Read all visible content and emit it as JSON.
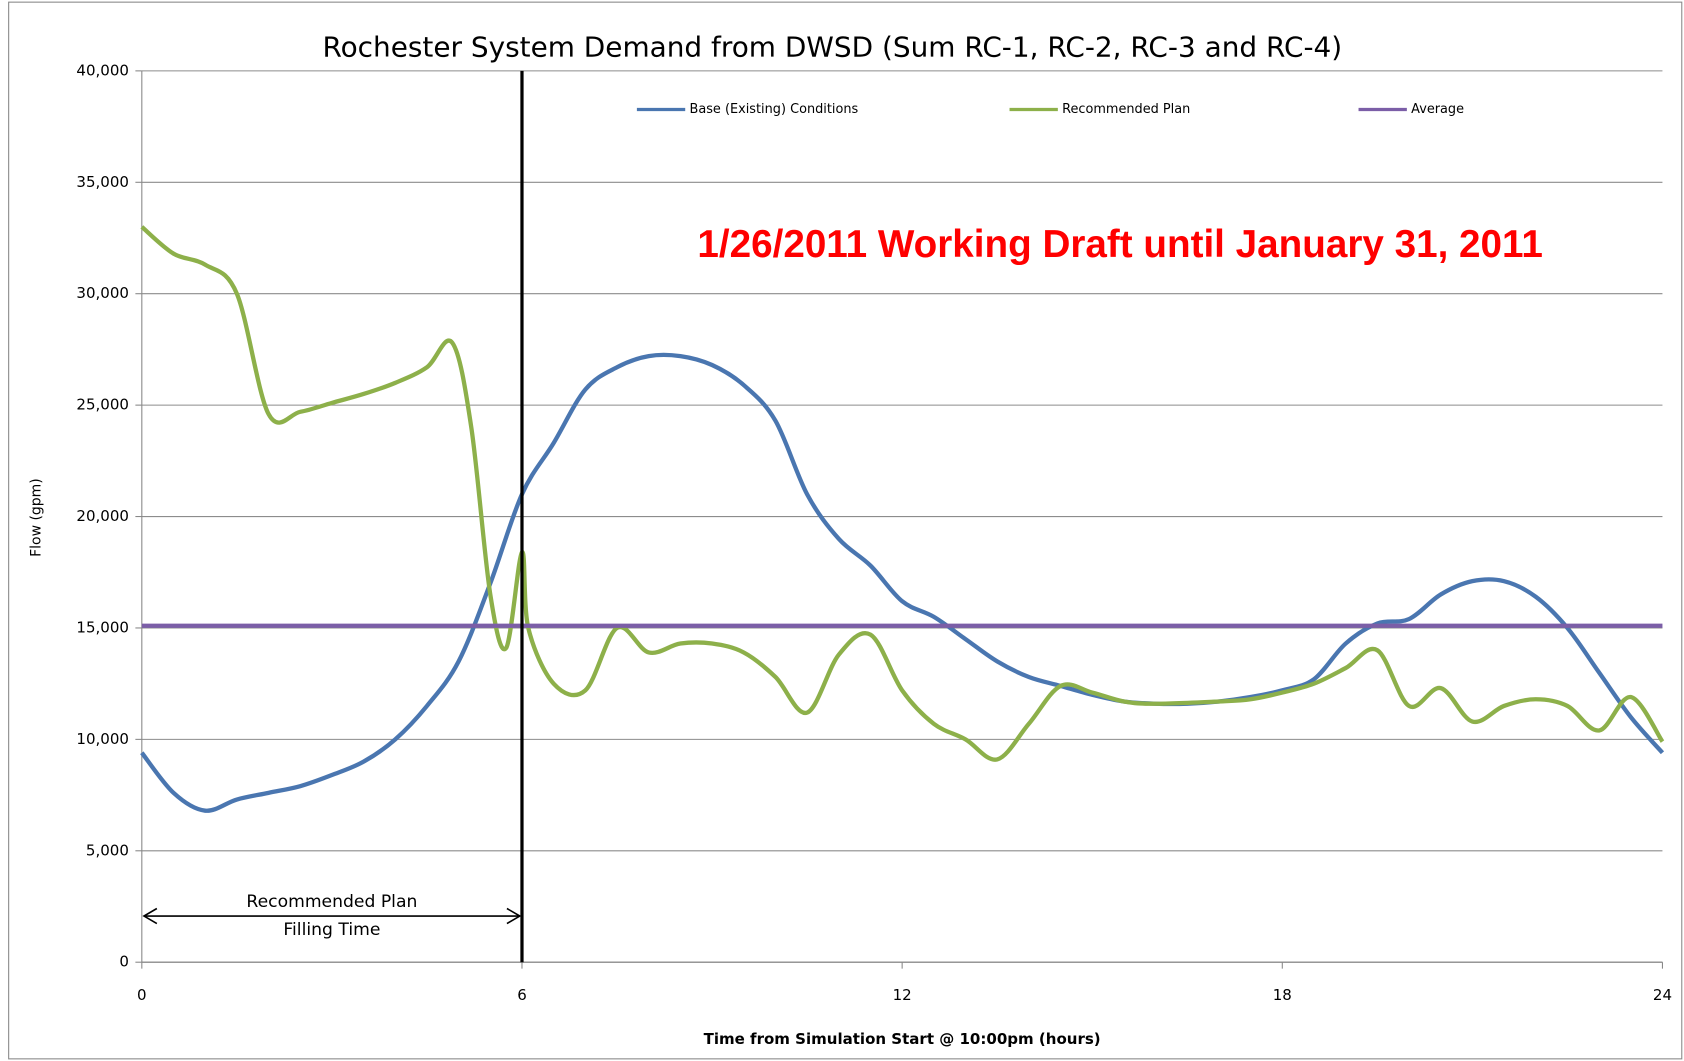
{
  "chart_data": {
    "type": "line",
    "title": "Rochester System Demand from DWSD (Sum RC-1, RC-2, RC-3 and RC-4)",
    "x_label": "Time from Simulation Start @ 10:00pm (hours)",
    "y_label": "Flow (gpm)",
    "xlim": [
      0,
      24
    ],
    "xticks": [
      0,
      6,
      12,
      18,
      24
    ],
    "ylim": [
      0,
      40000
    ],
    "yticks": [
      0,
      {
        "value": 5000,
        "label": "5,000"
      },
      {
        "value": 10000,
        "label": "10,000"
      },
      {
        "value": 15000,
        "label": "15,000"
      },
      {
        "value": 20000,
        "label": "20,000"
      },
      {
        "value": 25000,
        "label": "25,000"
      },
      {
        "value": 30000,
        "label": "30,000"
      },
      {
        "value": 35000,
        "label": "35,000"
      },
      {
        "value": 40000,
        "label": "40,000"
      }
    ],
    "grid": true,
    "legend": "top",
    "series": [
      {
        "name": "Base (Existing) Conditions",
        "color": "#4a76b0",
        "x": [
          0,
          0.5,
          1,
          1.5,
          2,
          2.5,
          3,
          3.5,
          4,
          4.5,
          5,
          5.5,
          6,
          6.5,
          7,
          7.5,
          8,
          8.5,
          9,
          9.5,
          10,
          10.5,
          11,
          11.5,
          12,
          12.5,
          13,
          13.5,
          14,
          14.5,
          15,
          15.5,
          16,
          16.5,
          17,
          17.5,
          18,
          18.5,
          19,
          19.5,
          20,
          20.5,
          21,
          21.5,
          22,
          22.5,
          23,
          23.5,
          24
        ],
        "values": [
          9400,
          7600,
          6800,
          7300,
          7600,
          7900,
          8400,
          9000,
          10000,
          11500,
          13500,
          17000,
          21000,
          23300,
          25700,
          26700,
          27200,
          27200,
          26800,
          25900,
          24300,
          21000,
          19000,
          17800,
          16200,
          15500,
          14500,
          13500,
          12800,
          12400,
          12000,
          11700,
          11600,
          11600,
          11700,
          11900,
          12200,
          12700,
          14300,
          15200,
          15400,
          16500,
          17100,
          17100,
          16400,
          15000,
          13000,
          11000,
          9400
        ]
      },
      {
        "name": "Recommended Plan",
        "color": "#8db04a",
        "x": [
          0,
          0.5,
          1,
          1.5,
          2,
          2.5,
          3,
          3.5,
          4,
          4.5,
          4.9,
          5.2,
          5.5,
          5.75,
          6,
          6.1,
          6.5,
          7,
          7.5,
          8,
          8.5,
          9,
          9.5,
          10,
          10.5,
          11,
          11.5,
          12,
          12.5,
          13,
          13.5,
          14,
          14.5,
          15,
          15.5,
          16,
          17,
          17.5,
          18,
          18.5,
          19,
          19.5,
          20,
          20.5,
          21,
          21.5,
          22,
          22.5,
          23,
          23.5,
          24
        ],
        "values": [
          33000,
          31800,
          31300,
          30000,
          24600,
          24700,
          25100,
          25500,
          26000,
          26700,
          27800,
          24000,
          16500,
          14100,
          18400,
          15000,
          12500,
          12200,
          15000,
          13900,
          14300,
          14300,
          13900,
          12800,
          11200,
          13800,
          14700,
          12200,
          10700,
          10000,
          9100,
          10700,
          12400,
          12100,
          11700,
          11600,
          11700,
          11800,
          12100,
          12500,
          13200,
          14000,
          11500,
          12300,
          10800,
          11500,
          11800,
          11500,
          10400,
          11900,
          9900
        ]
      },
      {
        "name": "Average",
        "color": "#7b5ea7",
        "x": [
          0,
          24
        ],
        "values": [
          15100,
          15100
        ]
      }
    ],
    "annotations": {
      "draft": "1/26/2011 Working Draft until January 31, 2011",
      "filling_time": [
        "Recommended Plan",
        "Filling Time"
      ],
      "marker_x": 6
    }
  }
}
